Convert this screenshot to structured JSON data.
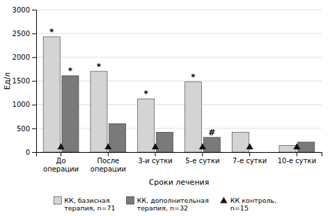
{
  "chart_data": {
    "type": "bar",
    "categories": [
      "До\nоперации",
      "После\nоперации",
      "3-и сутки",
      "5-е сутки",
      "7-е сутки",
      "10-е сутки"
    ],
    "series": [
      {
        "name": "КК, базисная\nтерапия, n=71",
        "type": "bar",
        "color": "#d4d4d4",
        "values": [
          2430,
          1700,
          1120,
          1480,
          420,
          140
        ],
        "annotations": [
          "*",
          "*",
          "*",
          "*",
          null,
          null
        ]
      },
      {
        "name": "КК, дополнительная\nтерапия, n=32",
        "type": "bar",
        "color": "#7a7a7a",
        "values": [
          1610,
          600,
          420,
          310,
          0,
          210
        ],
        "annotations": [
          "*",
          null,
          null,
          "#",
          null,
          null
        ]
      },
      {
        "name": "КК контроль,\nn=15",
        "type": "scatter",
        "marker": "triangle",
        "color": "#111111",
        "values": [
          100,
          100,
          100,
          100,
          100,
          100
        ]
      }
    ],
    "xlabel": "Сроки лечения",
    "ylabel": "Ед/л",
    "ylim": [
      0,
      3000
    ],
    "yticks": [
      0,
      500,
      1000,
      1500,
      2000,
      2500,
      3000
    ],
    "grid": true
  }
}
